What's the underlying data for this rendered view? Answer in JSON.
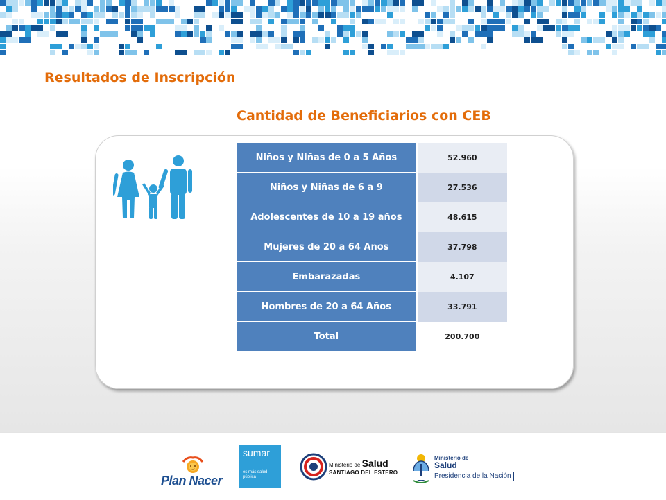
{
  "section_title": "Resultados de Inscripción",
  "table_title": "Cantidad de Beneficiarios con CEB",
  "rows": [
    {
      "label": "Niños y Niñas de 0 a 5 Años",
      "value": "52.960"
    },
    {
      "label": "Niños y Niñas de 6 a 9",
      "value": "27.536"
    },
    {
      "label": "Adolescentes de 10 a 19 años",
      "value": "48.615"
    },
    {
      "label": "Mujeres de 20 a 64 Años",
      "value": "37.798"
    },
    {
      "label": "Embarazadas",
      "value": "4.107"
    },
    {
      "label": "Hombres de 20 a 64 Años",
      "value": "33.791"
    },
    {
      "label": "Total",
      "value": "200.700"
    }
  ],
  "logos": {
    "plan_nacer": "Plan Nacer",
    "sumar_name": "sumar",
    "sumar_tagline": "es más salud pública",
    "msse_prefix": "Ministerio de",
    "msse_name": "Salud",
    "msse_province": "SANTIAGO DEL ESTERO",
    "msn_prefix": "Ministerio de",
    "msn_name": "Salud",
    "msn_presidency": "Presidencia de la Nación"
  },
  "colors": {
    "accent": "#e36c0a",
    "table_header": "#4f81bd",
    "row_light": "#e9edf4",
    "row_dark": "#d0d8e8",
    "banner_blue": "#2e9fd8"
  },
  "icons": [
    "family-icon",
    "banner-mosaic",
    "argentina-coat-of-arms-icon",
    "santiago-emblem-icon",
    "sun-face-icon"
  ]
}
